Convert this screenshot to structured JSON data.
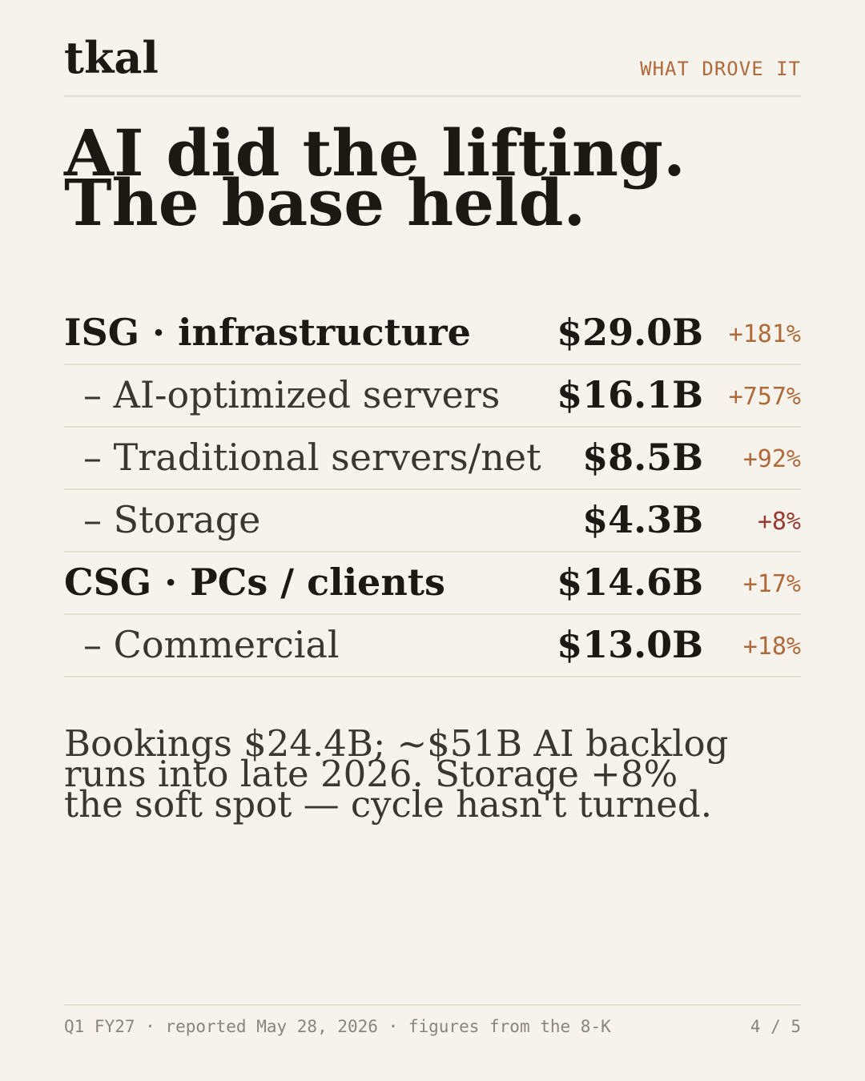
{
  "header": {
    "brand": "tkal",
    "tag": "WHAT DROVE IT"
  },
  "title": [
    "AI did the lifting.",
    "The base held."
  ],
  "table": {
    "rows": [
      {
        "label": "ISG · infrastructure",
        "value": "$29.0B",
        "change": "+181%",
        "bold": true,
        "change_color": "#b06a3a"
      },
      {
        "label": "– AI-optimized servers",
        "value": "$16.1B",
        "change": "+757%",
        "bold": false,
        "change_color": "#b06a3a"
      },
      {
        "label": "– Traditional servers/net",
        "value": "$8.5B",
        "change": "+92%",
        "bold": false,
        "change_color": "#b06a3a"
      },
      {
        "label": "– Storage",
        "value": "$4.3B",
        "change": "+8%",
        "bold": false,
        "change_color": "#983a30"
      },
      {
        "label": "CSG · PCs / clients",
        "value": "$14.6B",
        "change": "+17%",
        "bold": true,
        "change_color": "#b06a3a"
      },
      {
        "label": "– Commercial",
        "value": "$13.0B",
        "change": "+18%",
        "bold": false,
        "change_color": "#b06a3a"
      }
    ]
  },
  "body": [
    "Bookings $24.4B; ~$51B AI backlog",
    "runs into late 2026. Storage +8%",
    "the soft spot — cycle hasn't turned."
  ],
  "footer": {
    "source": "Q1 FY27 · reported May 28, 2026 · figures from the 8-K",
    "page": "4 / 5"
  }
}
